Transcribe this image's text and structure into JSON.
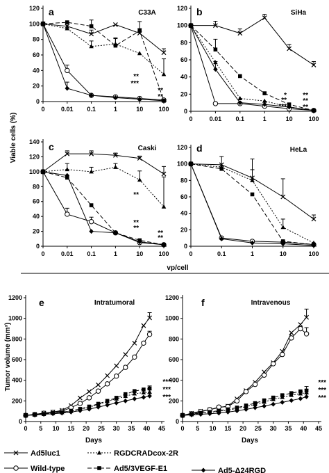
{
  "shared_labels": {
    "top_ylabel": "Viable cells (%)",
    "top_xlabel": "vp/cell",
    "bottom_ylabel": "Tumor volume (mm³)",
    "bottom_xlabel": "Days"
  },
  "series_styles": [
    {
      "name": "Ad5luc1",
      "marker": "x",
      "dash": "solid"
    },
    {
      "name": "RGDCRADcox-2R",
      "marker": "triangle",
      "dash": "dotted"
    },
    {
      "name": "Wild-type",
      "marker": "circle-open",
      "dash": "solid"
    },
    {
      "name": "Ad5/3VEGF-E1",
      "marker": "square",
      "dash": "dashed"
    },
    {
      "name": "Ad5-Δ24RGD",
      "marker": "diamond",
      "dash": "solid"
    }
  ],
  "legend": {
    "items": [
      {
        "label": "Ad5luc1"
      },
      {
        "label": "RGDCRADcox-2R"
      },
      {
        "label": "Wild-type"
      },
      {
        "label": "Ad5/3VEGF-E1"
      },
      {
        "label": "Ad5-Δ24RGD"
      }
    ]
  },
  "chart_data": [
    {
      "panel": "a",
      "title": "C33A",
      "type": "line",
      "x": [
        "0",
        "0.01",
        "0.1",
        "1",
        "10",
        "100"
      ],
      "ylim": [
        0,
        120
      ],
      "yticks": [
        0,
        20,
        40,
        60,
        80,
        100,
        120
      ],
      "grid": false,
      "series": [
        {
          "name": "Ad5luc1",
          "values": [
            100,
            97,
            87,
            99,
            88,
            63
          ],
          "err": [
            0,
            4,
            5,
            0,
            6,
            5
          ]
        },
        {
          "name": "RGDCRADcox-2R",
          "values": [
            100,
            94,
            71,
            74,
            62,
            35
          ],
          "err": [
            0,
            0,
            7,
            8,
            0,
            20
          ]
        },
        {
          "name": "Wild-type",
          "values": [
            100,
            40,
            8,
            6,
            4,
            2
          ],
          "err": [
            0,
            7,
            0,
            0,
            0,
            0
          ]
        },
        {
          "name": "Ad5/3VEGF-E1",
          "values": [
            100,
            102,
            97,
            72,
            91,
            1
          ],
          "err": [
            0,
            0,
            8,
            9,
            12,
            0
          ]
        },
        {
          "name": "Ad5-Δ24RGD",
          "values": [
            100,
            17,
            8,
            5,
            3,
            1
          ],
          "err": [
            0,
            8,
            0,
            0,
            0,
            0
          ]
        }
      ],
      "annotations": [
        "**",
        "***",
        "**",
        "**"
      ]
    },
    {
      "panel": "b",
      "title": "SiHa",
      "type": "line",
      "x": [
        "0",
        "0.01",
        "0.1",
        "1",
        "10",
        "100"
      ],
      "ylim": [
        0,
        120
      ],
      "yticks": [
        0,
        20,
        40,
        60,
        80,
        100,
        120
      ],
      "grid": false,
      "series": [
        {
          "name": "Ad5luc1",
          "values": [
            100,
            100,
            91,
            109,
            73,
            54
          ],
          "err": [
            0,
            5,
            5,
            4,
            5,
            4
          ]
        },
        {
          "name": "RGDCRADcox-2R",
          "values": [
            100,
            57,
            15,
            12,
            5,
            1
          ],
          "err": [
            0,
            0,
            0,
            0,
            0,
            0
          ]
        },
        {
          "name": "Wild-type",
          "values": [
            100,
            9,
            9,
            6,
            3,
            1
          ],
          "err": [
            0,
            0,
            0,
            0,
            0,
            0
          ]
        },
        {
          "name": "Ad5/3VEGF-E1",
          "values": [
            100,
            72,
            41,
            21,
            8,
            1
          ],
          "err": [
            0,
            12,
            0,
            0,
            0,
            0
          ]
        },
        {
          "name": "Ad5-Δ24RGD",
          "values": [
            100,
            49,
            10,
            8,
            5,
            1
          ],
          "err": [
            0,
            9,
            0,
            0,
            0,
            0
          ]
        }
      ],
      "annotations": [
        "*",
        "**",
        "***",
        "**",
        "**",
        "**"
      ]
    },
    {
      "panel": "c",
      "title": "Caski",
      "type": "line",
      "x": [
        "0",
        "0.01",
        "0.1",
        "1",
        "10",
        "100"
      ],
      "ylim": [
        0,
        140
      ],
      "yticks": [
        0,
        20,
        40,
        60,
        80,
        100,
        120,
        140
      ],
      "grid": false,
      "series": [
        {
          "name": "Ad5luc1",
          "values": [
            100,
            124,
            124,
            122,
            118,
            97
          ],
          "err": [
            0,
            4,
            4,
            3,
            3,
            10
          ]
        },
        {
          "name": "RGDCRADcox-2R",
          "values": [
            100,
            103,
            100,
            106,
            89,
            53
          ],
          "err": [
            0,
            8,
            6,
            5,
            12,
            40
          ]
        },
        {
          "name": "Wild-type",
          "values": [
            100,
            43,
            33,
            18,
            5,
            2
          ],
          "err": [
            0,
            8,
            6,
            0,
            0,
            0
          ]
        },
        {
          "name": "Ad5/3VEGF-E1",
          "values": [
            100,
            92,
            55,
            18,
            8,
            2
          ],
          "err": [
            0,
            0,
            0,
            0,
            0,
            0
          ]
        },
        {
          "name": "Ad5-Δ24RGD",
          "values": [
            100,
            95,
            20,
            18,
            6,
            2
          ],
          "err": [
            0,
            0,
            0,
            0,
            0,
            0
          ]
        }
      ],
      "annotations": [
        "**",
        "**",
        "**",
        "**",
        "**"
      ]
    },
    {
      "panel": "d",
      "title": "HeLa",
      "type": "line",
      "x": [
        "0",
        "0.1",
        "1",
        "10",
        "100"
      ],
      "ylim": [
        0,
        120
      ],
      "yticks": [
        0,
        20,
        40,
        60,
        80,
        100,
        120
      ],
      "grid": false,
      "series": [
        {
          "name": "Ad5luc1",
          "values": [
            100,
            99,
            83,
            60,
            33
          ],
          "err": [
            0,
            10,
            10,
            22,
            5
          ]
        },
        {
          "name": "RGDCRADcox-2R",
          "values": [
            100,
            96,
            80,
            23,
            4
          ],
          "err": [
            0,
            0,
            26,
            10,
            0
          ]
        },
        {
          "name": "Wild-type",
          "values": [
            100,
            10,
            6,
            5,
            2
          ],
          "err": [
            0,
            0,
            0,
            0,
            0
          ]
        },
        {
          "name": "Ad5/3VEGF-E1",
          "values": [
            100,
            94,
            63,
            6,
            2
          ],
          "err": [
            0,
            0,
            0,
            0,
            0
          ]
        },
        {
          "name": "Ad5-Δ24RGD",
          "values": [
            100,
            9,
            4,
            3,
            1
          ],
          "err": [
            0,
            0,
            0,
            0,
            0
          ]
        }
      ],
      "annotations": []
    },
    {
      "panel": "e",
      "title": "Intratumoral",
      "type": "line",
      "xlim": [
        0,
        45
      ],
      "xticks": [
        0,
        5,
        10,
        15,
        20,
        25,
        30,
        35,
        40,
        45
      ],
      "ylim": [
        0,
        1200
      ],
      "yticks": [
        0,
        200,
        400,
        600,
        800,
        1000,
        1200
      ],
      "grid": false,
      "x": [
        0,
        3,
        6,
        9,
        12,
        15,
        18,
        21,
        24,
        27,
        30,
        33,
        36,
        39,
        41
      ],
      "series": [
        {
          "name": "Ad5luc1",
          "values": [
            60,
            70,
            82,
            92,
            108,
            155,
            228,
            290,
            355,
            445,
            540,
            650,
            760,
            930,
            1005
          ],
          "err_last": 50
        },
        {
          "name": "Wild-type",
          "values": [
            60,
            68,
            80,
            88,
            100,
            135,
            175,
            230,
            295,
            365,
            440,
            525,
            625,
            760,
            845
          ],
          "err_last": 30
        },
        {
          "name": "RGDCRADcox-2R",
          "values": [
            60,
            65,
            72,
            80,
            88,
            100,
            118,
            140,
            165,
            195,
            220,
            245,
            270,
            280,
            285
          ],
          "err_last": 28
        },
        {
          "name": "Ad5/3VEGF-E1",
          "values": [
            60,
            66,
            74,
            82,
            90,
            104,
            122,
            145,
            172,
            200,
            230,
            265,
            295,
            310,
            320
          ],
          "err_last": 25
        },
        {
          "name": "Ad5-Δ24RGD",
          "values": [
            60,
            63,
            70,
            76,
            82,
            92,
            105,
            120,
            140,
            160,
            180,
            200,
            220,
            235,
            248
          ],
          "err_last": 25
        }
      ],
      "annotations": [
        "***",
        "***",
        "***"
      ]
    },
    {
      "panel": "f",
      "title": "Intravenous",
      "type": "line",
      "xlim": [
        0,
        45
      ],
      "xticks": [
        0,
        5,
        10,
        15,
        20,
        25,
        30,
        35,
        40,
        45
      ],
      "ylim": [
        0,
        1200
      ],
      "yticks": [
        0,
        200,
        400,
        600,
        800,
        1000,
        1200
      ],
      "grid": false,
      "x": [
        0,
        3,
        6,
        9,
        12,
        15,
        18,
        21,
        24,
        27,
        30,
        33,
        36,
        39,
        41
      ],
      "series": [
        {
          "name": "Ad5luc1",
          "values": [
            60,
            80,
            100,
            115,
            135,
            150,
            220,
            300,
            380,
            480,
            570,
            680,
            860,
            940,
            1010
          ],
          "err_last": 80
        },
        {
          "name": "Wild-type",
          "values": [
            60,
            75,
            95,
            115,
            140,
            145,
            200,
            290,
            360,
            450,
            560,
            650,
            810,
            900,
            850
          ],
          "err_last": 60
        },
        {
          "name": "RGDCRADcox-2R",
          "values": [
            60,
            68,
            78,
            88,
            100,
            110,
            125,
            145,
            165,
            190,
            215,
            235,
            255,
            270,
            280
          ],
          "err_last": 30
        },
        {
          "name": "Ad5/3VEGF-E1",
          "values": [
            60,
            72,
            82,
            92,
            105,
            118,
            135,
            155,
            178,
            205,
            232,
            255,
            275,
            292,
            300
          ],
          "err_last": 40
        },
        {
          "name": "Ad5-Δ24RGD",
          "values": [
            60,
            64,
            70,
            76,
            82,
            92,
            104,
            118,
            134,
            150,
            168,
            186,
            204,
            222,
            240
          ],
          "err_last": 30
        }
      ],
      "annotations": [
        "***",
        "***",
        "***"
      ]
    }
  ]
}
